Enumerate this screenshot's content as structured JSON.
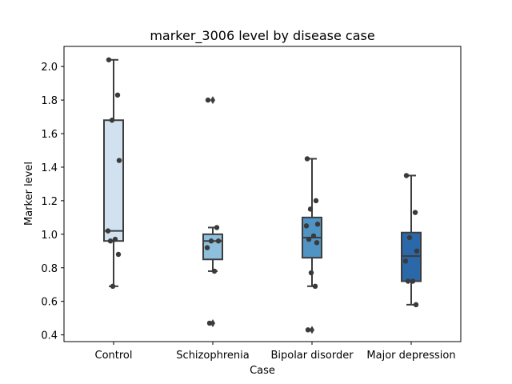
{
  "chart_data": {
    "type": "box",
    "title": "marker_3006 level by disease case",
    "xlabel": "Case",
    "ylabel": "Marker level",
    "ylim": [
      0.36,
      2.12
    ],
    "yticks": [
      "0.4",
      "0.6",
      "0.8",
      "1.0",
      "1.2",
      "1.4",
      "1.6",
      "1.8",
      "2.0"
    ],
    "grid": false,
    "categories": [
      "Control",
      "Schizophrenia",
      "Bipolar disorder",
      "Major depression"
    ],
    "colors": [
      "#d2e1f0",
      "#8ebfdc",
      "#4f94c4",
      "#2a68a9"
    ],
    "boxes": [
      {
        "q1": 0.96,
        "median": 1.02,
        "q3": 1.68,
        "whisker_low": 0.69,
        "whisker_high": 2.04,
        "outliers": [],
        "points": [
          2.04,
          1.83,
          1.68,
          1.44,
          1.02,
          0.97,
          0.96,
          0.88,
          0.69
        ]
      },
      {
        "q1": 0.85,
        "median": 0.96,
        "q3": 1.0,
        "whisker_low": 0.78,
        "whisker_high": 1.04,
        "outliers": [
          1.8,
          0.47
        ],
        "points": [
          1.8,
          1.04,
          0.96,
          0.96,
          0.92,
          0.78,
          0.47
        ]
      },
      {
        "q1": 0.86,
        "median": 0.98,
        "q3": 1.1,
        "whisker_low": 0.69,
        "whisker_high": 1.45,
        "outliers": [
          0.43
        ],
        "points": [
          1.45,
          1.2,
          1.15,
          1.06,
          1.05,
          0.99,
          0.97,
          0.95,
          0.77,
          0.69,
          0.43
        ]
      },
      {
        "q1": 0.72,
        "median": 0.87,
        "q3": 1.01,
        "whisker_low": 0.58,
        "whisker_high": 1.35,
        "outliers": [],
        "points": [
          1.35,
          1.13,
          0.98,
          0.9,
          0.84,
          0.72,
          0.72,
          0.58
        ]
      }
    ]
  }
}
